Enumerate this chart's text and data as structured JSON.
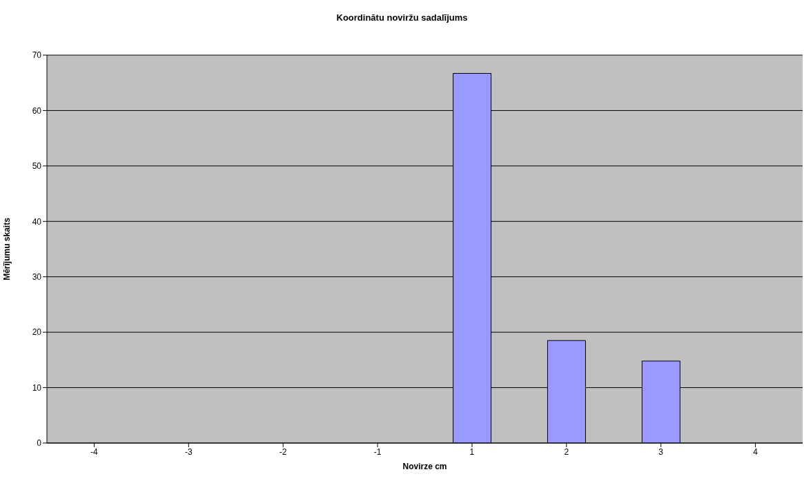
{
  "chart_data": {
    "type": "bar",
    "title": "Koordinātu noviržu sadalījums",
    "xlabel": "Novirze cm",
    "ylabel": "Mērījumu skaits",
    "categories": [
      "-4",
      "-3",
      "-2",
      "-1",
      "1",
      "2",
      "3",
      "4"
    ],
    "values": [
      0,
      0,
      0,
      0,
      66.7,
      18.5,
      14.8,
      0
    ],
    "color": "#9999ff",
    "ylim": [
      0,
      70
    ],
    "yticks": [
      0,
      10,
      20,
      30,
      40,
      50,
      60,
      70
    ],
    "grid": "y",
    "legend": false
  }
}
